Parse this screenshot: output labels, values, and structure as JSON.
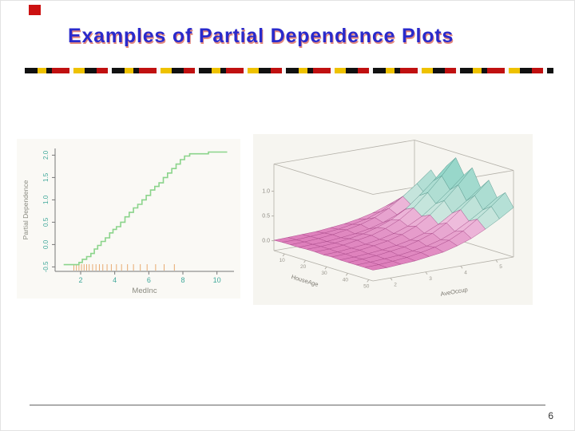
{
  "slide": {
    "title": "Examples of Partial Dependence Plots",
    "page_number": "6",
    "title_color": "#2a2acb",
    "accent_red": "#cc1111"
  },
  "chart_data": [
    {
      "type": "line",
      "title": "",
      "xlabel": "MedInc",
      "ylabel": "Partial Dependence",
      "xlim": [
        0.5,
        11
      ],
      "ylim": [
        -0.6,
        2.15
      ],
      "x_ticks": [
        2,
        4,
        6,
        8,
        10
      ],
      "y_ticks": [
        -0.5,
        0.0,
        0.5,
        1.0,
        1.5,
        2.0
      ],
      "step": true,
      "grid": false,
      "line_color": "#8bd48b",
      "tick_color": "#3fa89a",
      "rug_color": "#e8aa70",
      "points": [
        [
          1.0,
          -0.45
        ],
        [
          1.7,
          -0.45
        ],
        [
          1.9,
          -0.4
        ],
        [
          2.1,
          -0.33
        ],
        [
          2.35,
          -0.27
        ],
        [
          2.6,
          -0.2
        ],
        [
          2.8,
          -0.1
        ],
        [
          3.0,
          -0.02
        ],
        [
          3.2,
          0.07
        ],
        [
          3.45,
          0.15
        ],
        [
          3.7,
          0.26
        ],
        [
          3.9,
          0.34
        ],
        [
          4.1,
          0.4
        ],
        [
          4.35,
          0.5
        ],
        [
          4.6,
          0.62
        ],
        [
          4.85,
          0.72
        ],
        [
          5.1,
          0.82
        ],
        [
          5.35,
          0.9
        ],
        [
          5.6,
          1.0
        ],
        [
          5.85,
          1.1
        ],
        [
          6.1,
          1.22
        ],
        [
          6.35,
          1.3
        ],
        [
          6.6,
          1.38
        ],
        [
          6.85,
          1.5
        ],
        [
          7.1,
          1.6
        ],
        [
          7.35,
          1.7
        ],
        [
          7.6,
          1.8
        ],
        [
          7.85,
          1.9
        ],
        [
          8.1,
          1.98
        ],
        [
          8.4,
          2.03
        ],
        [
          9.2,
          2.03
        ],
        [
          9.5,
          2.07
        ],
        [
          10.6,
          2.07
        ]
      ],
      "rug_x": [
        1.6,
        1.75,
        1.9,
        2.05,
        2.2,
        2.35,
        2.5,
        2.7,
        2.9,
        3.1,
        3.3,
        3.55,
        3.8,
        4.1,
        4.4,
        4.75,
        5.1,
        5.5,
        5.9,
        6.4,
        6.9,
        7.5
      ]
    },
    {
      "type": "surface",
      "title": "",
      "xlabel": "HouseAge",
      "ylabel": "AveOccup",
      "x_ticks": [
        10,
        20,
        30,
        40,
        50
      ],
      "y_ticks": [
        2,
        3,
        4,
        5
      ],
      "z_ticks": [
        0.0,
        0.5,
        1.0
      ],
      "x_range": [
        5,
        52
      ],
      "y_range": [
        1.5,
        5.5
      ],
      "zlim": [
        -0.2,
        1.55
      ],
      "low_color": "#dd7cba",
      "high_color": "#7fcfc0",
      "z_row_order": "front-to-back",
      "z": [
        [
          0.01,
          0.02,
          0.02,
          0.02,
          0.03,
          0.03,
          0.02,
          0.03,
          0.02,
          0.02,
          0.02,
          0.02,
          0.02
        ],
        [
          0.02,
          0.02,
          0.03,
          0.03,
          0.04,
          0.04,
          0.03,
          0.04,
          0.03,
          0.04,
          0.03,
          0.03,
          0.02
        ],
        [
          0.03,
          0.04,
          0.05,
          0.04,
          0.06,
          0.07,
          0.06,
          0.07,
          0.05,
          0.06,
          0.05,
          0.05,
          0.04
        ],
        [
          0.04,
          0.06,
          0.08,
          0.07,
          0.1,
          0.12,
          0.09,
          0.11,
          0.08,
          0.1,
          0.07,
          0.08,
          0.06
        ],
        [
          0.07,
          0.09,
          0.13,
          0.1,
          0.15,
          0.17,
          0.14,
          0.16,
          0.12,
          0.14,
          0.11,
          0.13,
          0.1
        ],
        [
          0.1,
          0.14,
          0.19,
          0.15,
          0.23,
          0.26,
          0.21,
          0.24,
          0.18,
          0.22,
          0.16,
          0.19,
          0.14
        ],
        [
          0.15,
          0.2,
          0.28,
          0.23,
          0.34,
          0.39,
          0.31,
          0.36,
          0.27,
          0.32,
          0.24,
          0.28,
          0.22
        ],
        [
          0.22,
          0.3,
          0.42,
          0.34,
          0.5,
          0.58,
          0.46,
          0.54,
          0.4,
          0.48,
          0.36,
          0.42,
          0.32
        ],
        [
          0.32,
          0.44,
          0.61,
          0.49,
          0.73,
          0.84,
          0.67,
          0.78,
          0.58,
          0.7,
          0.52,
          0.61,
          0.46
        ],
        [
          0.43,
          0.59,
          0.82,
          0.66,
          0.98,
          1.13,
          0.9,
          1.05,
          0.78,
          0.94,
          0.7,
          0.82,
          0.62
        ],
        [
          0.55,
          0.75,
          1.05,
          0.85,
          1.25,
          1.45,
          1.15,
          1.35,
          1.0,
          1.2,
          0.9,
          1.05,
          0.8
        ]
      ]
    }
  ]
}
